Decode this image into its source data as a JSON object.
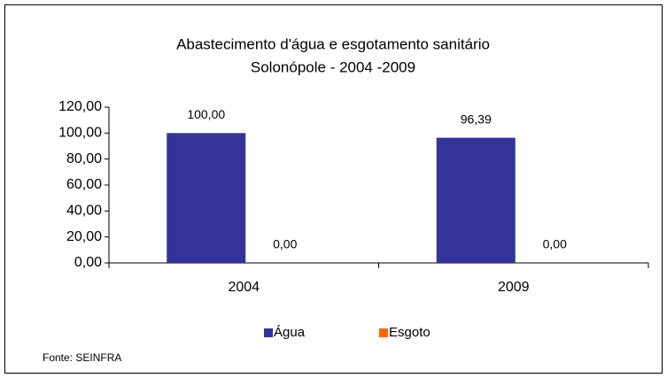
{
  "chart_data": {
    "type": "bar",
    "title": "Abastecimento d'água e esgotamento sanitário",
    "subtitle": "Solonópole   - 2004 -2009",
    "categories": [
      "2004",
      "2009"
    ],
    "series": [
      {
        "name": "Água",
        "color": "#333399",
        "values": [
          100,
          96.39
        ],
        "value_labels": [
          "100,00",
          "96,39"
        ]
      },
      {
        "name": "Esgoto",
        "color": "#FF6600",
        "values": [
          0,
          0
        ],
        "value_labels": [
          "0,00",
          "0,00"
        ]
      }
    ],
    "ylim": [
      0,
      120
    ],
    "yticks": [
      {
        "value": 0,
        "label": "0,00"
      },
      {
        "value": 20,
        "label": "20,00"
      },
      {
        "value": 40,
        "label": "40,00"
      },
      {
        "value": 60,
        "label": "60,00"
      },
      {
        "value": 80,
        "label": "80,00"
      },
      {
        "value": 100,
        "label": "100,00"
      },
      {
        "value": 120,
        "label": "120,00"
      }
    ],
    "legend": "bottom",
    "source": "Fonte: SEINFRA"
  }
}
